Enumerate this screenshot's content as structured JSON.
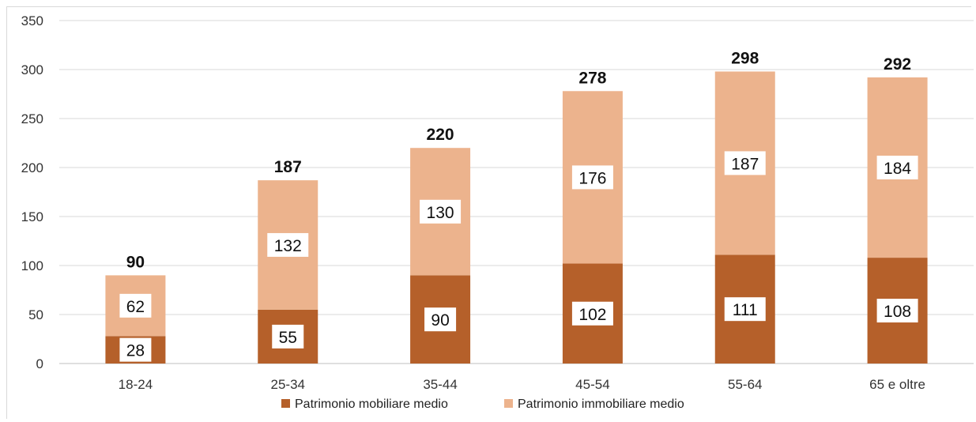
{
  "chart_data": {
    "type": "bar",
    "stacked": true,
    "categories": [
      "18-24",
      "25-34",
      "35-44",
      "45-54",
      "55-64",
      "65 e oltre"
    ],
    "series": [
      {
        "name": "Patrimonio mobiliare medio",
        "values": [
          28,
          55,
          90,
          102,
          111,
          108
        ],
        "color": "#b5602a"
      },
      {
        "name": "Patrimonio immobiliare medio",
        "values": [
          62,
          132,
          130,
          176,
          187,
          184
        ],
        "color": "#ecb38d"
      }
    ],
    "totals": [
      90,
      187,
      220,
      278,
      298,
      292
    ],
    "ylim": [
      0,
      350
    ],
    "yticks": [
      0,
      50,
      100,
      150,
      200,
      250,
      300,
      350
    ],
    "grid": true,
    "legend": "bottom",
    "title": "",
    "xlabel": "",
    "ylabel": ""
  }
}
